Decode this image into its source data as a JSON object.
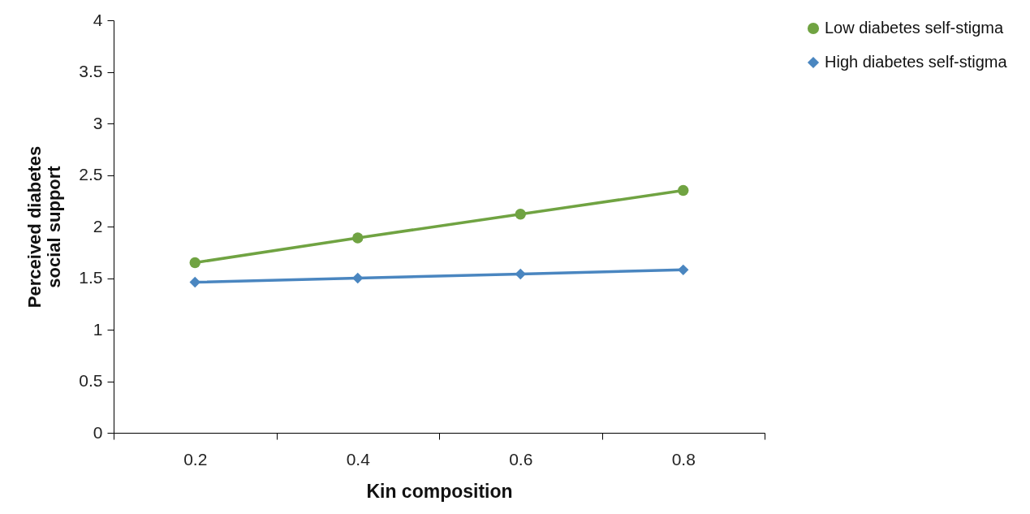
{
  "chart_data": {
    "type": "line",
    "xlabel": "Kin composition",
    "ylabel": "Perceived diabetes social support",
    "categories": [
      "0.2",
      "0.4",
      "0.6",
      "0.8"
    ],
    "series": [
      {
        "name": "Low diabetes self-stigma",
        "color": "#70a342",
        "marker": "circle",
        "values": [
          1.65,
          1.89,
          2.12,
          2.35
        ]
      },
      {
        "name": "High diabetes self-stigma",
        "color": "#4a86c0",
        "marker": "diamond",
        "values": [
          1.46,
          1.5,
          1.54,
          1.58
        ]
      }
    ],
    "ylim": [
      0,
      4
    ],
    "yticks": [
      0,
      0.5,
      1,
      1.5,
      2,
      2.5,
      3,
      3.5,
      4
    ],
    "grid": false,
    "legend": "right"
  }
}
